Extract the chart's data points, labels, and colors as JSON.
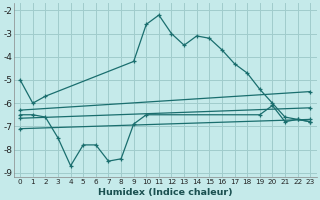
{
  "xlabel": "Humidex (Indice chaleur)",
  "xlim": [
    -0.5,
    23.5
  ],
  "ylim": [
    -9.2,
    -1.7
  ],
  "yticks": [
    -9,
    -8,
    -7,
    -6,
    -5,
    -4,
    -3,
    -2
  ],
  "xticks": [
    0,
    1,
    2,
    3,
    4,
    5,
    6,
    7,
    8,
    9,
    10,
    11,
    12,
    13,
    14,
    15,
    16,
    17,
    18,
    19,
    20,
    21,
    22,
    23
  ],
  "bg_color": "#c5eaea",
  "grid_color": "#a0cccc",
  "line_color": "#1a6e6e",
  "lines": [
    {
      "x": [
        0,
        1,
        2,
        9,
        10,
        11,
        12,
        13,
        14,
        15,
        16,
        17,
        18,
        19,
        20,
        21,
        22,
        23
      ],
      "y": [
        -5.0,
        -6.0,
        -5.7,
        -4.2,
        -2.6,
        -2.2,
        -3.0,
        -3.5,
        -3.1,
        -3.2,
        -3.7,
        -4.3,
        -4.7,
        -5.4,
        -6.0,
        -6.6,
        -6.7,
        -6.8
      ]
    },
    {
      "x": [
        0,
        1,
        2,
        3,
        4,
        5,
        6,
        7,
        8,
        9,
        10,
        19,
        20,
        21,
        22,
        23
      ],
      "y": [
        -6.5,
        -6.5,
        -6.6,
        -7.5,
        -8.7,
        -7.8,
        -7.8,
        -8.5,
        -8.4,
        -6.9,
        -6.5,
        -6.5,
        -6.1,
        -6.8,
        -6.7,
        -6.8
      ]
    },
    {
      "x": [
        0,
        23
      ],
      "y": [
        -6.3,
        -5.5
      ]
    },
    {
      "x": [
        0,
        23
      ],
      "y": [
        -6.65,
        -6.2
      ]
    },
    {
      "x": [
        0,
        23
      ],
      "y": [
        -7.1,
        -6.7
      ]
    }
  ]
}
